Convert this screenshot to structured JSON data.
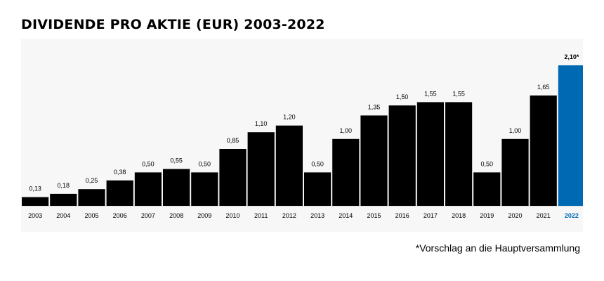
{
  "chart_data": {
    "type": "bar",
    "title": "DIVIDENDE PRO AKTIE (EUR) 2003-2022",
    "xlabel": "",
    "ylabel": "",
    "ylim": [
      0,
      2.1
    ],
    "categories": [
      "2003",
      "2004",
      "2005",
      "2006",
      "2007",
      "2008",
      "2009",
      "2010",
      "2011",
      "2012",
      "2013",
      "2014",
      "2015",
      "2016",
      "2017",
      "2018",
      "2019",
      "2020",
      "2021",
      "2022"
    ],
    "values": [
      0.13,
      0.18,
      0.25,
      0.38,
      0.5,
      0.55,
      0.5,
      0.85,
      1.1,
      1.2,
      0.5,
      1.0,
      1.35,
      1.5,
      1.55,
      1.55,
      0.5,
      1.0,
      1.65,
      2.1
    ],
    "value_labels": [
      "0,13",
      "0,18",
      "0,25",
      "0,38",
      "0,50",
      "0,55",
      "0,50",
      "0,85",
      "1,10",
      "1,20",
      "0,50",
      "1,00",
      "1,35",
      "1,50",
      "1,55",
      "1,55",
      "0,50",
      "1,00",
      "1,65",
      "2,10*"
    ],
    "highlight_index": 19,
    "bar_color": "#000000",
    "highlight_color": "#0069b4",
    "grid": false,
    "legend": "none",
    "footnote": "*Vorschlag an die Hauptversammlung"
  }
}
